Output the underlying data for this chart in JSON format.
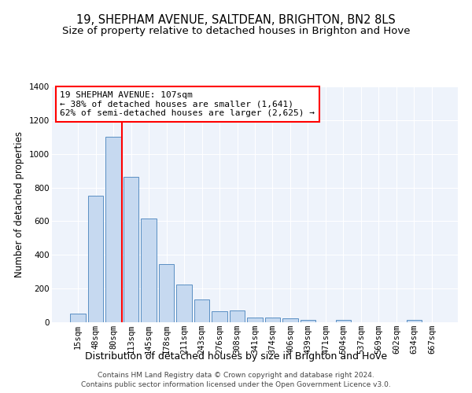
{
  "title1": "19, SHEPHAM AVENUE, SALTDEAN, BRIGHTON, BN2 8LS",
  "title2": "Size of property relative to detached houses in Brighton and Hove",
  "xlabel": "Distribution of detached houses by size in Brighton and Hove",
  "ylabel": "Number of detached properties",
  "bin_labels": [
    "15sqm",
    "48sqm",
    "80sqm",
    "113sqm",
    "145sqm",
    "178sqm",
    "211sqm",
    "243sqm",
    "276sqm",
    "308sqm",
    "341sqm",
    "374sqm",
    "406sqm",
    "439sqm",
    "471sqm",
    "504sqm",
    "537sqm",
    "569sqm",
    "602sqm",
    "634sqm",
    "667sqm"
  ],
  "bar_heights": [
    50,
    750,
    1100,
    865,
    615,
    345,
    225,
    135,
    65,
    70,
    30,
    30,
    22,
    15,
    0,
    12,
    0,
    0,
    0,
    12,
    0
  ],
  "bar_color": "#c6d9f0",
  "bar_edge_color": "#5a8fc3",
  "vline_color": "red",
  "annotation_text": "19 SHEPHAM AVENUE: 107sqm\n← 38% of detached houses are smaller (1,641)\n62% of semi-detached houses are larger (2,625) →",
  "annotation_box_color": "white",
  "annotation_box_edge_color": "red",
  "ylim": [
    0,
    1400
  ],
  "yticks": [
    0,
    200,
    400,
    600,
    800,
    1000,
    1200,
    1400
  ],
  "footer1": "Contains HM Land Registry data © Crown copyright and database right 2024.",
  "footer2": "Contains public sector information licensed under the Open Government Licence v3.0.",
  "background_color": "#eef3fb",
  "grid_color": "#ffffff",
  "title1_fontsize": 10.5,
  "title2_fontsize": 9.5,
  "xlabel_fontsize": 9,
  "ylabel_fontsize": 8.5,
  "tick_fontsize": 7.5,
  "annotation_fontsize": 8,
  "footer_fontsize": 6.5
}
